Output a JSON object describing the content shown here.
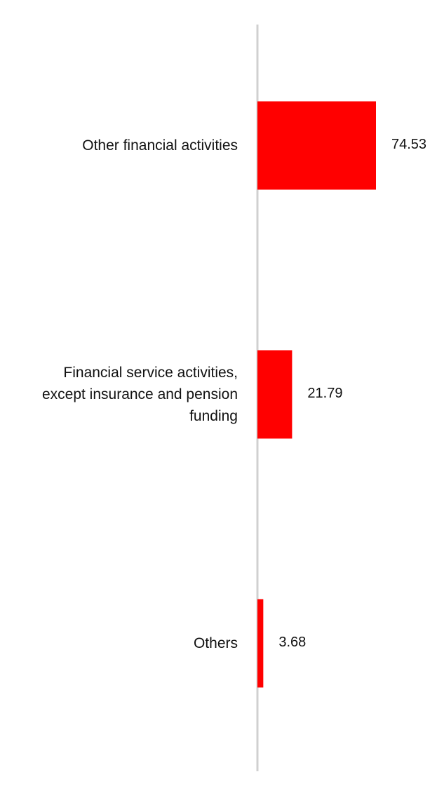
{
  "chart_data": {
    "type": "bar",
    "orientation": "horizontal",
    "title": "",
    "xlabel": "",
    "ylabel": "",
    "categories": [
      "Other financial activities",
      "Financial service activities, except insurance and pension funding",
      "Others"
    ],
    "category_lines": [
      [
        "Other financial activities"
      ],
      [
        "Financial service activities,",
        "except insurance and pension",
        "funding"
      ],
      [
        "Others"
      ]
    ],
    "values": [
      74.53,
      21.79,
      3.68
    ],
    "value_labels": [
      "74.53",
      "21.79",
      "3.68"
    ],
    "xlim": [
      0,
      100
    ],
    "grid": false,
    "legend": "none",
    "colors": {
      "bar": "#ff0000",
      "axis": "#d0d0d0",
      "text": "#111111"
    }
  }
}
